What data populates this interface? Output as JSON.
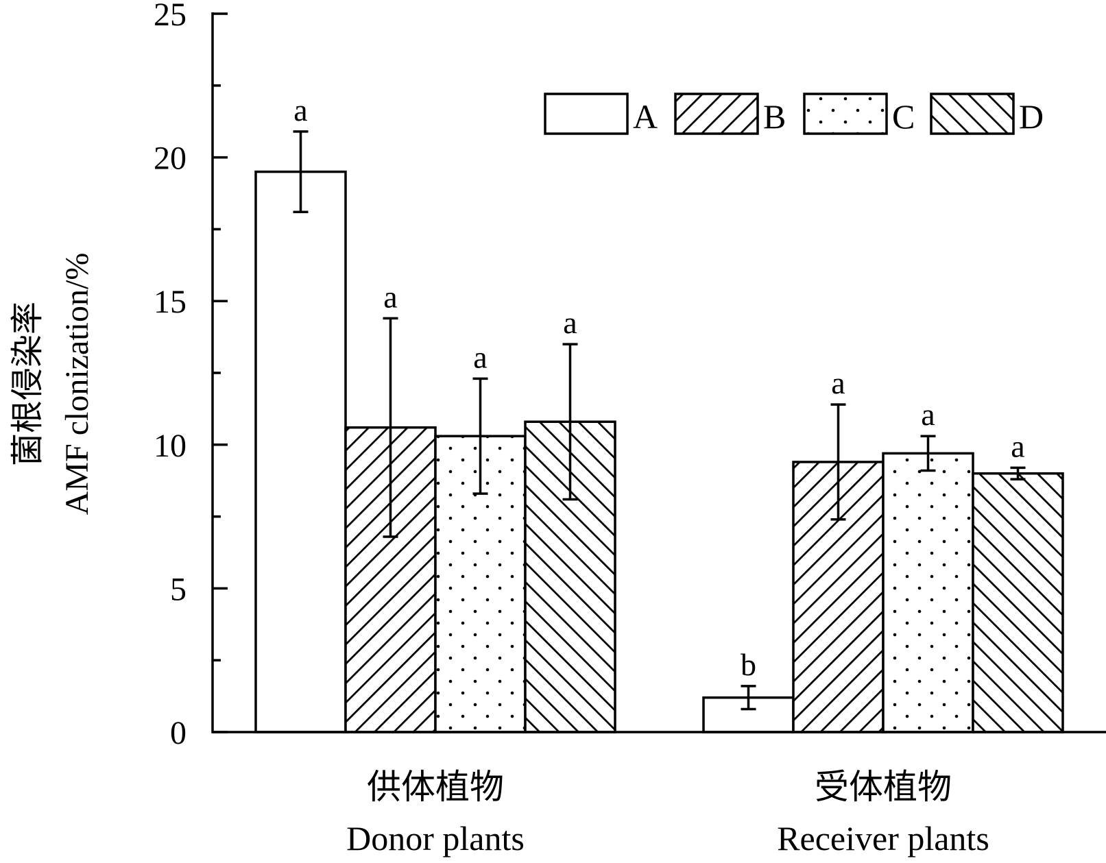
{
  "chart_data": {
    "type": "bar",
    "title": "",
    "ylabel_cn": "菌根侵染率",
    "ylabel_en": "AMF clonization/%",
    "ylim": [
      0,
      25
    ],
    "yticks": [
      0,
      5,
      10,
      15,
      20,
      25
    ],
    "yticks_minor": [
      2.5,
      7.5,
      12.5,
      17.5,
      22.5
    ],
    "categories": [
      {
        "cn": "供体植物",
        "en": "Donor plants"
      },
      {
        "cn": "受体植物",
        "en": "Receiver plants"
      }
    ],
    "series": [
      {
        "name": "A",
        "pattern": "blank",
        "values": [
          19.5,
          1.2
        ],
        "errors": [
          1.4,
          0.4
        ],
        "letters": [
          "a",
          "b"
        ]
      },
      {
        "name": "B",
        "pattern": "hatch-forward",
        "values": [
          10.6,
          9.4
        ],
        "errors": [
          3.8,
          2.0
        ],
        "letters": [
          "a",
          "a"
        ]
      },
      {
        "name": "C",
        "pattern": "dots",
        "values": [
          10.3,
          9.7
        ],
        "errors": [
          2.0,
          0.6
        ],
        "letters": [
          "a",
          "a"
        ]
      },
      {
        "name": "D",
        "pattern": "hatch-backward",
        "values": [
          10.8,
          9.0
        ],
        "errors": [
          2.7,
          0.2
        ],
        "letters": [
          "a",
          "a"
        ]
      }
    ],
    "legend_position": "top-right"
  }
}
